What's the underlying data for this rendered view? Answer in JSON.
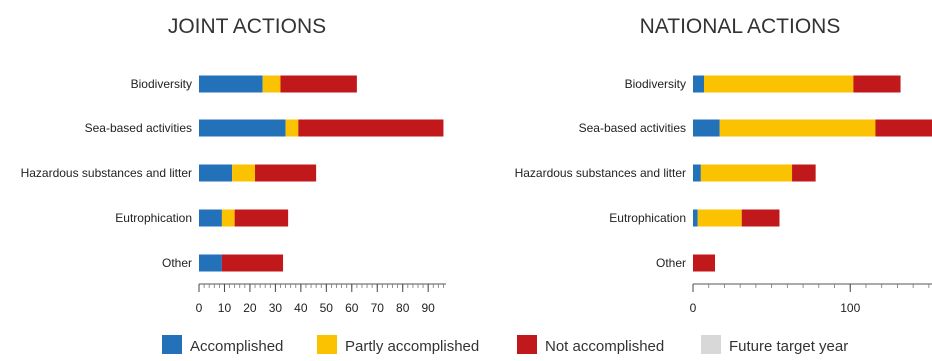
{
  "colors": {
    "accomplished": "#2372b9",
    "partly": "#fbc202",
    "not": "#c0181b",
    "future": "#d8d8d8"
  },
  "legend": [
    {
      "key": "accomplished",
      "label": "Accomplished"
    },
    {
      "key": "partly",
      "label": "Partly accomplished"
    },
    {
      "key": "not",
      "label": "Not accomplished"
    },
    {
      "key": "future",
      "label": "Future target year"
    }
  ],
  "chart_data": [
    {
      "type": "bar",
      "orientation": "horizontal",
      "stacked": true,
      "title": "JOINT ACTIONS",
      "categories": [
        "Biodiversity",
        "Sea-based activities",
        "Hazardous substances and litter",
        "Eutrophication",
        "Other"
      ],
      "series": [
        {
          "name": "Accomplished",
          "values": [
            25,
            34,
            13,
            9,
            9
          ]
        },
        {
          "name": "Partly accomplished",
          "values": [
            7,
            5,
            9,
            5,
            0
          ]
        },
        {
          "name": "Not accomplished",
          "values": [
            30,
            57,
            24,
            21,
            24
          ]
        },
        {
          "name": "Future target year",
          "values": [
            0,
            0,
            0,
            0,
            0
          ]
        }
      ],
      "xlim": [
        0,
        97
      ],
      "xticks": [
        0,
        10,
        20,
        30,
        40,
        50,
        60,
        70,
        80,
        90
      ],
      "xtick_labels": [
        "0",
        "10",
        "20",
        "30",
        "40",
        "50",
        "60",
        "70",
        "80",
        "90"
      ]
    },
    {
      "type": "bar",
      "orientation": "horizontal",
      "stacked": true,
      "title": "NATIONAL ACTIONS",
      "categories": [
        "Biodiversity",
        "Sea-based activities",
        "Hazardous substances and litter",
        "Eutrophication",
        "Other"
      ],
      "series": [
        {
          "name": "Accomplished",
          "values": [
            7,
            17,
            5,
            3,
            0
          ]
        },
        {
          "name": "Partly accomplished",
          "values": [
            95,
            99,
            58,
            28,
            0
          ]
        },
        {
          "name": "Not accomplished",
          "values": [
            30,
            36,
            15,
            24,
            14
          ]
        },
        {
          "name": "Future target year",
          "values": [
            0,
            0,
            0,
            0,
            0
          ]
        }
      ],
      "xlim": [
        0,
        152
      ],
      "xticks": [
        0,
        100
      ],
      "xtick_labels": [
        "0",
        "100"
      ]
    }
  ]
}
